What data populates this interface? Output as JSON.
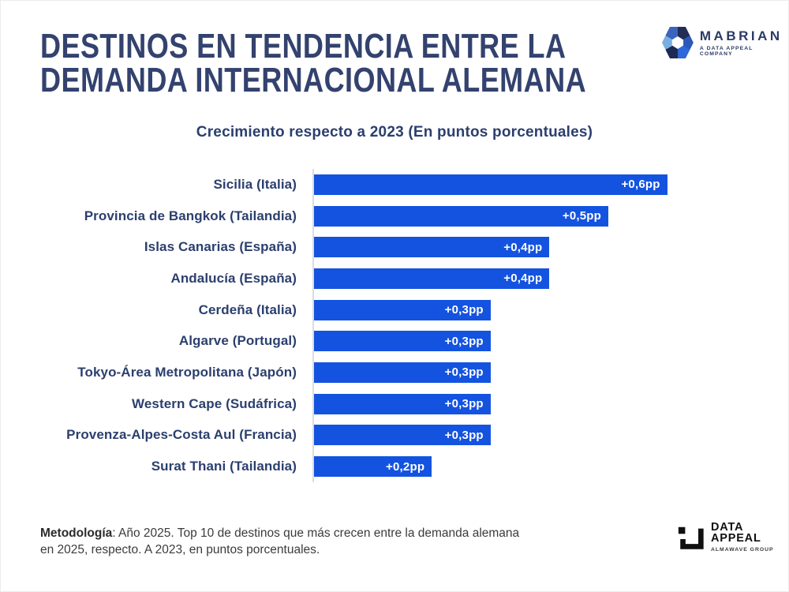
{
  "header": {
    "title_line1": "DESTINOS EN TENDENCIA ENTRE LA",
    "title_line2": "DEMANDA INTERNACIONAL ALEMANA",
    "brand": {
      "name": "MABRIAN",
      "tagline": "A DATA APPEAL COMPANY"
    }
  },
  "chart_data": {
    "type": "bar",
    "orientation": "horizontal",
    "title": "Crecimiento respecto a 2023 (En puntos porcentuales)",
    "categories": [
      "Sicilia (Italia)",
      "Provincia de Bangkok (Tailandia)",
      "Islas Canarias (España)",
      "Andalucía (España)",
      "Cerdeña (Italia)",
      "Algarve (Portugal)",
      "Tokyo-Área Metropolitana (Japón)",
      "Western Cape (Sudáfrica)",
      "Provenza-Alpes-Costa Aul (Francia)",
      "Surat Thani (Tailandia)"
    ],
    "values": [
      0.6,
      0.5,
      0.4,
      0.4,
      0.3,
      0.3,
      0.3,
      0.3,
      0.3,
      0.2
    ],
    "value_labels": [
      "+0,6pp",
      "+0,5pp",
      "+0,4pp",
      "+0,4pp",
      "+0,3pp",
      "+0,3pp",
      "+0,3pp",
      "+0,3pp",
      "+0,3pp",
      "+0,2pp"
    ],
    "unit": "pp",
    "xlabel": "",
    "ylabel": "",
    "xlim": [
      0,
      0.65
    ],
    "grid": false,
    "legend": false,
    "bar_color": "#1453E0",
    "axis_color": "#DCDCDC",
    "category_label_color": "#2B3F6E",
    "value_label_color": "#FFFFFF"
  },
  "footer": {
    "methodology_label": "Metodología",
    "methodology_text": ": Año 2025. Top 10 de destinos que más crecen entre la demanda alemana en 2025, respecto. A 2023, en puntos porcentuales.",
    "brand": {
      "line1": "DATA",
      "line2": "APPEAL",
      "tagline": "ALMAWAVE GROUP"
    }
  }
}
